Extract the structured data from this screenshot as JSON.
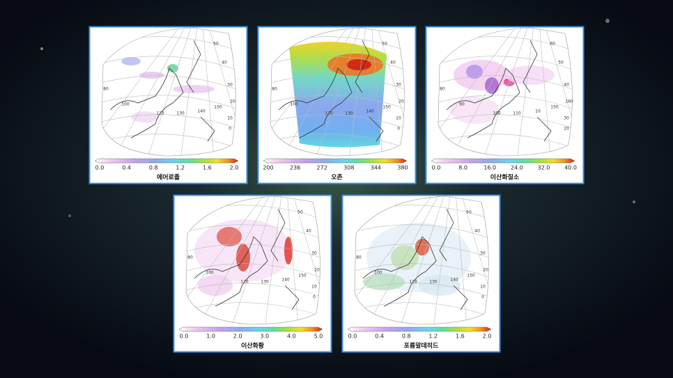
{
  "panels": [
    {
      "title": "에어로졸",
      "colorbar_ticks": [
        "0.0",
        "0.4",
        "0.8",
        "1.2",
        "1.6",
        "2.0"
      ],
      "grid_labels": [
        "50",
        "40",
        "30",
        "20",
        "150",
        "10",
        "0",
        "140",
        "130",
        "120",
        "100",
        "80"
      ]
    },
    {
      "title": "오존",
      "colorbar_ticks": [
        "200",
        "236",
        "272",
        "308",
        "344",
        "380"
      ],
      "grid_labels": [
        "50",
        "40",
        "30",
        "20",
        "150",
        "10",
        "0",
        "140",
        "130",
        "120",
        "100",
        "80"
      ]
    },
    {
      "title": "이산화질소",
      "colorbar_ticks": [
        "0.0",
        "8.0",
        "16.0",
        "24.0",
        "32.0",
        "40.0"
      ],
      "grid_labels": [
        "60",
        "50",
        "40",
        "160",
        "150",
        "30",
        "20",
        "10",
        "110",
        "100",
        "90",
        "80"
      ]
    },
    {
      "title": "이산화황",
      "colorbar_ticks": [
        "0.0",
        "1.0",
        "2.0",
        "3.0",
        "4.0",
        "5.0"
      ],
      "grid_labels": [
        "50",
        "40",
        "30",
        "20",
        "150",
        "10",
        "0",
        "140",
        "130",
        "120",
        "100",
        "80"
      ]
    },
    {
      "title": "포름알데히드",
      "colorbar_ticks": [
        "0.0",
        "0.4",
        "0.8",
        "1.2",
        "1.6",
        "2.0"
      ],
      "grid_labels": [
        "50",
        "40",
        "30",
        "20",
        "150",
        "10",
        "0",
        "140",
        "130",
        "120",
        "100",
        "80"
      ]
    }
  ]
}
